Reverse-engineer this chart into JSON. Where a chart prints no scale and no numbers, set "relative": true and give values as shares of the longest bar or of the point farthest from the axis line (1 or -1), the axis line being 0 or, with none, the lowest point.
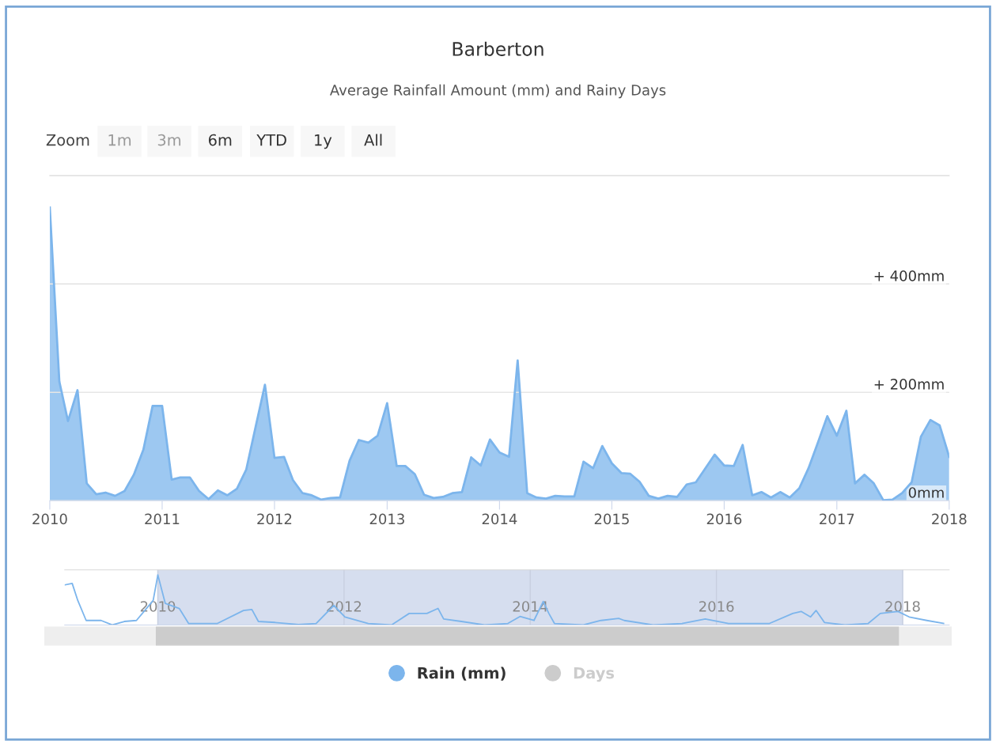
{
  "chart_data": [
    {
      "type": "area",
      "title": "Barberton",
      "subtitle": "Average Rainfall Amount (mm) and Rainy Days",
      "annotations": [
        "Zoom",
        "1m",
        "3m",
        "6m",
        "YTD",
        "1y",
        "All",
        "Days"
      ],
      "x": [
        "2010-01",
        "2010-02",
        "2010-03",
        "2010-04",
        "2010-05",
        "2010-06",
        "2010-07",
        "2010-08",
        "2010-09",
        "2010-10",
        "2010-11",
        "2010-12",
        "2011-01",
        "2011-02",
        "2011-03",
        "2011-04",
        "2011-05",
        "2011-06",
        "2011-07",
        "2011-08",
        "2011-09",
        "2011-10",
        "2011-11",
        "2011-12",
        "2012-01",
        "2012-02",
        "2012-03",
        "2012-04",
        "2012-05",
        "2012-06",
        "2012-07",
        "2012-08",
        "2012-09",
        "2012-10",
        "2012-11",
        "2012-12",
        "2013-01",
        "2013-02",
        "2013-03",
        "2013-04",
        "2013-05",
        "2013-06",
        "2013-07",
        "2013-08",
        "2013-09",
        "2013-10",
        "2013-11",
        "2013-12",
        "2014-01",
        "2014-02",
        "2014-03",
        "2014-04",
        "2014-05",
        "2014-06",
        "2014-07",
        "2014-08",
        "2014-09",
        "2014-10",
        "2014-11",
        "2014-12",
        "2015-01",
        "2015-02",
        "2015-03",
        "2015-04",
        "2015-05",
        "2015-06",
        "2015-07",
        "2015-08",
        "2015-09",
        "2015-10",
        "2015-11",
        "2015-12",
        "2016-01",
        "2016-02",
        "2016-03",
        "2016-04",
        "2016-05",
        "2016-06",
        "2016-07",
        "2016-08",
        "2016-09",
        "2016-10",
        "2016-11",
        "2016-12",
        "2017-01",
        "2017-02",
        "2017-03",
        "2017-04",
        "2017-05",
        "2017-06",
        "2017-07",
        "2017-08",
        "2017-09",
        "2017-10",
        "2017-11",
        "2017-12",
        "2018-01"
      ],
      "series": [
        {
          "name": "Rain (mm)",
          "color": "#7cb5ec",
          "values": [
            541,
            220,
            147,
            204,
            32,
            12,
            15,
            9,
            18,
            48,
            94,
            175,
            175,
            39,
            43,
            43,
            18,
            3,
            19,
            10,
            22,
            57,
            137,
            214,
            79,
            81,
            38,
            14,
            10,
            2,
            5,
            6,
            74,
            112,
            107,
            120,
            180,
            64,
            64,
            49,
            11,
            5,
            7,
            14,
            16,
            80,
            65,
            113,
            89,
            81,
            259,
            14,
            6,
            4,
            9,
            8,
            8,
            72,
            60,
            101,
            69,
            51,
            50,
            35,
            9,
            4,
            9,
            7,
            30,
            34,
            60,
            85,
            65,
            64,
            103,
            10,
            16,
            6,
            16,
            6,
            23,
            60,
            108,
            156,
            120,
            166,
            32,
            48,
            32,
            1,
            2,
            14,
            34,
            118,
            149,
            139,
            81
          ]
        }
      ],
      "xlim": [
        "2010-01",
        "2018-01"
      ],
      "xticks": [
        "2010",
        "2011",
        "2012",
        "2013",
        "2014",
        "2015",
        "2016",
        "2017",
        "2018"
      ],
      "ylim": [
        0,
        600
      ],
      "yticks": [
        {
          "value": 0,
          "label": "0mm"
        },
        {
          "value": 200,
          "label": "+ 200mm"
        },
        {
          "value": 400,
          "label": "+ 400mm"
        }
      ],
      "grid": "y",
      "legend": "bottom"
    },
    {
      "type": "line",
      "relative": true,
      "tick_labels": "x",
      "grid": "x",
      "x": [
        2009.0,
        2009.08,
        2009.14,
        2009.23,
        2009.39,
        2009.51,
        2009.64,
        2009.77,
        2009.86,
        2009.95,
        2010.0,
        2010.08,
        2010.23,
        2010.33,
        2010.64,
        2010.92,
        2011.01,
        2011.08,
        2011.26,
        2011.51,
        2011.7,
        2011.89,
        2012.01,
        2012.26,
        2012.51,
        2012.7,
        2012.89,
        2013.01,
        2013.07,
        2013.26,
        2013.51,
        2013.76,
        2013.89,
        2014.04,
        2014.14,
        2014.2,
        2014.26,
        2014.57,
        2014.76,
        2014.95,
        2015.01,
        2015.32,
        2015.63,
        2015.88,
        2016.13,
        2016.57,
        2016.82,
        2016.91,
        2017.01,
        2017.07,
        2017.16,
        2017.38,
        2017.63,
        2017.76,
        2017.95,
        2018.07,
        2018.26,
        2018.44
      ],
      "series": [
        {
          "color": "#7cb5ec",
          "values": [
            0.8,
            0.83,
            0.49,
            0.09,
            0.09,
            0,
            0.07,
            0.09,
            0.29,
            0.49,
            1,
            0.43,
            0.33,
            0.03,
            0.03,
            0.29,
            0.31,
            0.07,
            0.05,
            0.01,
            0.03,
            0.39,
            0.16,
            0.03,
            0,
            0.23,
            0.23,
            0.33,
            0.12,
            0.07,
            0,
            0.03,
            0.17,
            0.09,
            0.47,
            0.23,
            0.03,
            0,
            0.09,
            0.13,
            0.09,
            0,
            0.03,
            0.12,
            0.03,
            0.03,
            0.23,
            0.27,
            0.16,
            0.29,
            0.05,
            0,
            0.03,
            0.23,
            0.27,
            0.16,
            0.09,
            0.03
          ]
        }
      ],
      "xlim": [
        2009.0,
        2018.5
      ],
      "xticks": [
        2010,
        2012,
        2014,
        2016,
        2018
      ],
      "bands": [
        {
          "axis": "x",
          "from": 2010.0,
          "to": 2018.0,
          "color": "#ccd6eb"
        }
      ]
    }
  ]
}
